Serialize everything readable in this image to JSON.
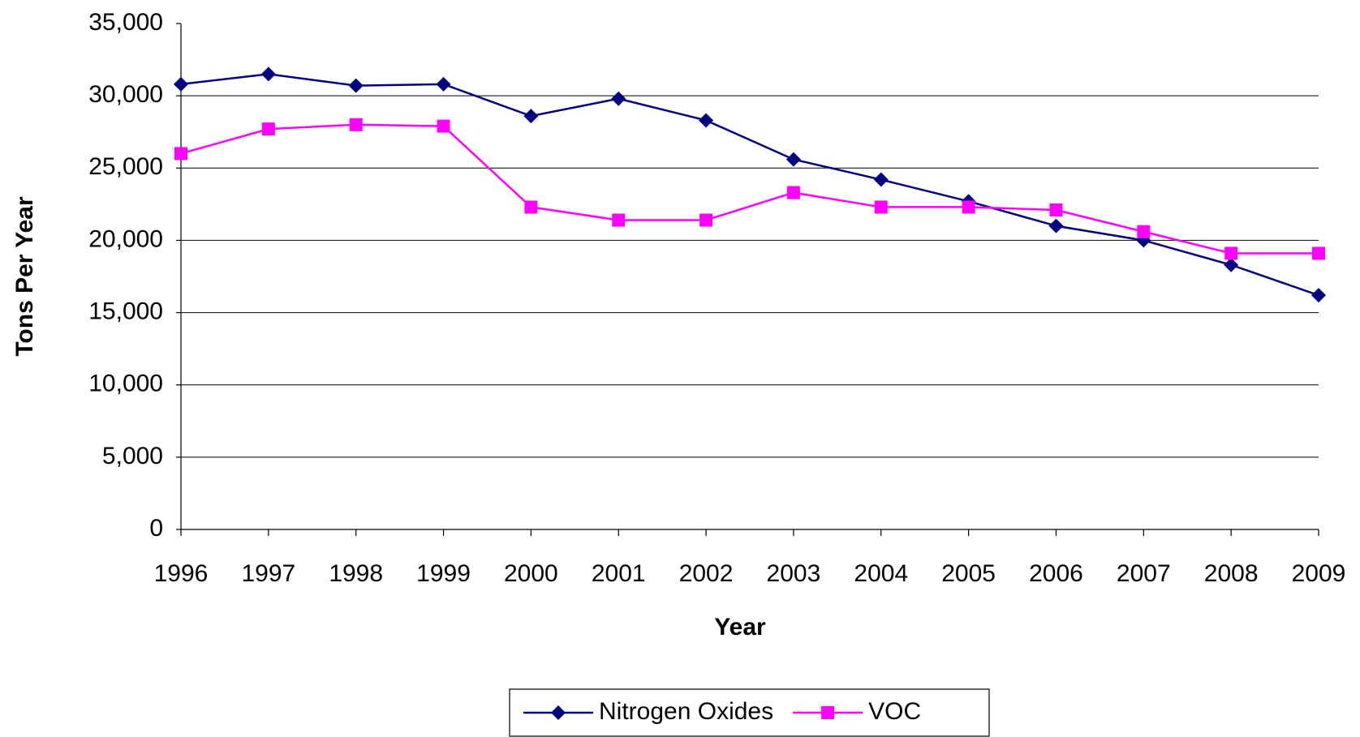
{
  "chart_data": {
    "type": "line",
    "x_label": "Year",
    "y_label": "Tons Per Year",
    "categories": [
      "1996",
      "1997",
      "1998",
      "1999",
      "2000",
      "2001",
      "2002",
      "2003",
      "2004",
      "2005",
      "2006",
      "2007",
      "2008",
      "2009"
    ],
    "series": [
      {
        "name": "Nitrogen Oxides",
        "color": "#000080",
        "marker": "diamond",
        "values": [
          30800,
          31500,
          30700,
          30800,
          28600,
          29800,
          28300,
          25600,
          24200,
          22700,
          21000,
          20000,
          18300,
          16200
        ]
      },
      {
        "name": "VOC",
        "color": "#ff00ff",
        "marker": "square",
        "values": [
          26000,
          27700,
          28000,
          27900,
          22300,
          21400,
          21400,
          23300,
          22300,
          22300,
          22100,
          20600,
          19100,
          19100
        ]
      }
    ],
    "ylim": [
      0,
      35000
    ],
    "yticks": [
      0,
      {
        "value": 5000,
        "label": "5,000"
      },
      {
        "value": 10000,
        "label": "10,000"
      },
      {
        "value": 15000,
        "label": "15,000"
      },
      {
        "value": 20000,
        "label": "20,000"
      },
      {
        "value": 25000,
        "label": "25,000"
      },
      {
        "value": 30000,
        "label": "30,000"
      },
      {
        "value": 35000,
        "label": "35,000"
      }
    ],
    "grid": true,
    "legend": "bottom"
  }
}
